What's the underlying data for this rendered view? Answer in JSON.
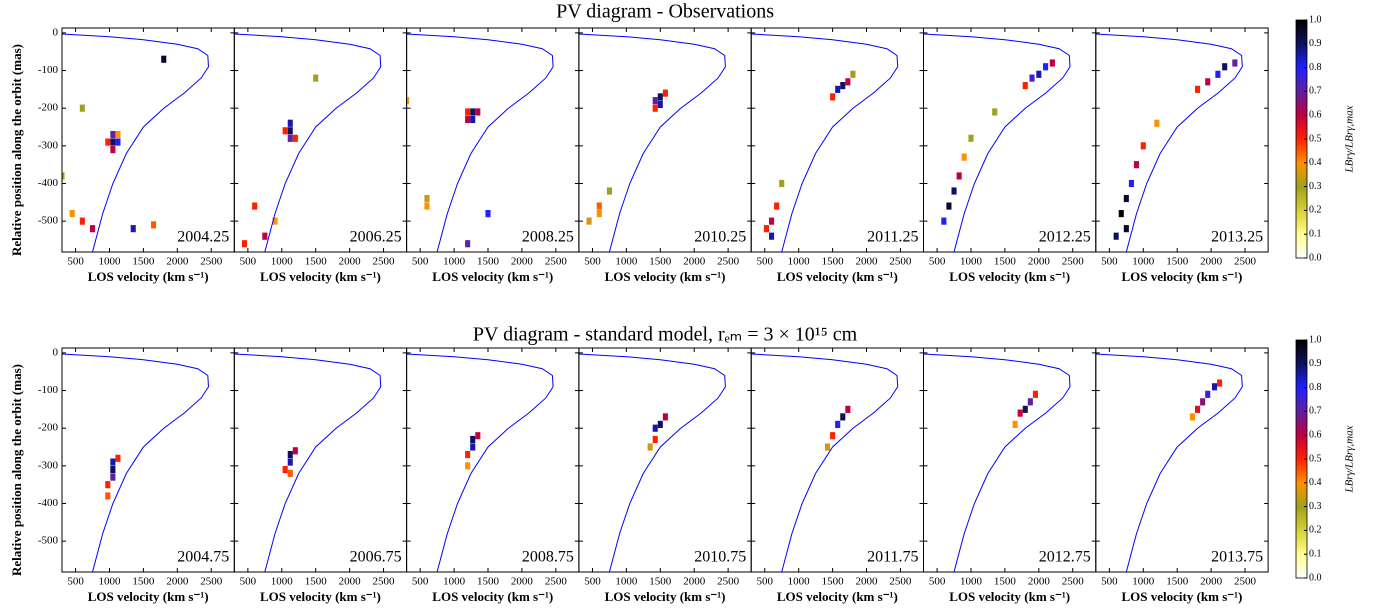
{
  "chart_data": [
    {
      "type": "heatmap",
      "title": "PV diagram - Observations",
      "xlabel": "LOS velocity (km s⁻¹)",
      "ylabel": "Relative position along the orbit (mas)",
      "xlim": [
        300,
        2840
      ],
      "ylim": [
        -582,
        13
      ],
      "xticks": [
        500,
        1000,
        1500,
        2000,
        2500
      ],
      "yticks": [
        0,
        -100,
        -200,
        -300,
        -400,
        -500
      ],
      "cell": [
        75,
        19
      ],
      "orbit": {
        "color": "#0000ff",
        "x": [
          300,
          1000,
          1500,
          2000,
          2300,
          2450,
          2460,
          2350,
          2100,
          1800,
          1500,
          1250,
          1050,
          900,
          750
        ],
        "y": [
          -3,
          -10,
          -18,
          -30,
          -42,
          -60,
          -90,
          -120,
          -160,
          -200,
          -250,
          -320,
          -400,
          -480,
          -582
        ]
      },
      "colorbar": {
        "label": "LBrγ/LBrγ,max",
        "clim": [
          0,
          1
        ],
        "colormap": [
          "#ffffff",
          "#ffff90",
          "#d8d030",
          "#a0a020",
          "#ff9000",
          "#ff2000",
          "#c00040",
          "#6020a0",
          "#2020ff",
          "#101060",
          "#000000"
        ],
        "cticks": [
          {
            "value": 0,
            "label": "0.0"
          },
          {
            "value": 0.1,
            "label": "0.1"
          },
          {
            "value": 0.2,
            "label": "0.2"
          },
          {
            "value": 0.3,
            "label": "0.3"
          },
          {
            "value": 0.4,
            "label": "0.4"
          },
          {
            "value": 0.5,
            "label": "0.5"
          },
          {
            "value": 0.6,
            "label": "0.6"
          },
          {
            "value": 0.7,
            "label": "0.7"
          },
          {
            "value": 0.8,
            "label": "0.8"
          },
          {
            "value": 0.9,
            "label": "0.9"
          },
          {
            "value": 1,
            "label": "1.0"
          }
        ]
      },
      "panels": [
        {
          "label": "2004.25",
          "cells": [
            [
              1050,
              -290,
              0.9
            ],
            [
              1050,
              -270,
              0.7
            ],
            [
              1125,
              -290,
              0.8
            ],
            [
              1050,
              -310,
              0.6
            ],
            [
              975,
              -290,
              0.5
            ],
            [
              1125,
              -270,
              0.4
            ],
            [
              600,
              -500,
              0.5
            ],
            [
              750,
              -520,
              0.6
            ],
            [
              1350,
              -520,
              0.85
            ],
            [
              450,
              -480,
              0.4
            ],
            [
              1650,
              -510,
              0.45
            ],
            [
              1800,
              -70,
              0.95
            ],
            [
              300,
              -380,
              0.3
            ],
            [
              600,
              -200,
              0.3
            ]
          ]
        },
        {
          "label": "2006.25",
          "cells": [
            [
              1125,
              -240,
              0.85
            ],
            [
              1125,
              -260,
              0.9
            ],
            [
              1125,
              -280,
              0.7
            ],
            [
              1050,
              -260,
              0.5
            ],
            [
              1200,
              -280,
              0.5
            ],
            [
              600,
              -460,
              0.5
            ],
            [
              750,
              -540,
              0.6
            ],
            [
              450,
              -560,
              0.5
            ],
            [
              900,
              -500,
              0.4
            ],
            [
              1500,
              -120,
              0.3
            ]
          ]
        },
        {
          "label": "2008.25",
          "cells": [
            [
              1275,
              -210,
              0.9
            ],
            [
              1275,
              -230,
              0.85
            ],
            [
              1200,
              -230,
              0.6
            ],
            [
              1350,
              -210,
              0.6
            ],
            [
              1200,
              -210,
              0.5
            ],
            [
              600,
              -460,
              0.4
            ],
            [
              600,
              -440,
              0.35
            ],
            [
              300,
              -180,
              0.4
            ],
            [
              1500,
              -480,
              0.8
            ],
            [
              1200,
              -560,
              0.7
            ]
          ]
        },
        {
          "label": "2010.25",
          "cells": [
            [
              1500,
              -170,
              0.9
            ],
            [
              1500,
              -190,
              0.85
            ],
            [
              1425,
              -180,
              0.7
            ],
            [
              1575,
              -160,
              0.5
            ],
            [
              1425,
              -200,
              0.5
            ],
            [
              600,
              -460,
              0.45
            ],
            [
              600,
              -480,
              0.4
            ],
            [
              750,
              -420,
              0.3
            ],
            [
              450,
              -500,
              0.35
            ]
          ]
        },
        {
          "label": "2011.25",
          "cells": [
            [
              1650,
              -140,
              0.9
            ],
            [
              1575,
              -150,
              0.85
            ],
            [
              1725,
              -130,
              0.6
            ],
            [
              1500,
              -170,
              0.5
            ],
            [
              600,
              -500,
              0.6
            ],
            [
              600,
              -540,
              0.85
            ],
            [
              675,
              -460,
              0.5
            ],
            [
              525,
              -520,
              0.5
            ],
            [
              750,
              -400,
              0.3
            ],
            [
              1800,
              -110,
              0.3
            ]
          ]
        },
        {
          "label": "2012.25",
          "cells": [
            [
              2000,
              -110,
              0.85
            ],
            [
              2100,
              -90,
              0.8
            ],
            [
              1900,
              -120,
              0.75
            ],
            [
              2200,
              -80,
              0.6
            ],
            [
              1800,
              -140,
              0.5
            ],
            [
              750,
              -420,
              0.9
            ],
            [
              675,
              -460,
              0.95
            ],
            [
              600,
              -500,
              0.8
            ],
            [
              825,
              -380,
              0.6
            ],
            [
              900,
              -330,
              0.4
            ],
            [
              1000,
              -280,
              0.3
            ],
            [
              1350,
              -210,
              0.3
            ]
          ]
        },
        {
          "label": "2013.25",
          "cells": [
            [
              2200,
              -90,
              0.9
            ],
            [
              2100,
              -110,
              0.8
            ],
            [
              2350,
              -80,
              0.7
            ],
            [
              1950,
              -130,
              0.6
            ],
            [
              1800,
              -150,
              0.5
            ],
            [
              750,
              -440,
              0.95
            ],
            [
              675,
              -480,
              1.0
            ],
            [
              750,
              -520,
              0.95
            ],
            [
              600,
              -540,
              0.9
            ],
            [
              825,
              -400,
              0.8
            ],
            [
              900,
              -350,
              0.6
            ],
            [
              1000,
              -300,
              0.5
            ],
            [
              1200,
              -240,
              0.4
            ]
          ]
        }
      ]
    },
    {
      "type": "heatmap",
      "title": "PV diagram - standard model, rₑₘ = 3 × 10¹⁵ cm",
      "xlabel": "LOS velocity (km s⁻¹)",
      "ylabel": "Relative position along the orbit (mas)",
      "xlim": [
        300,
        2840
      ],
      "ylim": [
        -582,
        13
      ],
      "xticks": [
        500,
        1000,
        1500,
        2000,
        2500
      ],
      "yticks": [
        0,
        -100,
        -200,
        -300,
        -400,
        -500
      ],
      "cell": [
        75,
        19
      ],
      "orbit": {
        "color": "#0000ff",
        "x": [
          300,
          1000,
          1500,
          2000,
          2300,
          2450,
          2460,
          2350,
          2100,
          1800,
          1500,
          1250,
          1050,
          900,
          750
        ],
        "y": [
          -3,
          -10,
          -18,
          -30,
          -42,
          -60,
          -90,
          -120,
          -160,
          -200,
          -250,
          -320,
          -400,
          -480,
          -582
        ]
      },
      "colorbar": {
        "label": "LBrγ/LBrγ,max",
        "clim": [
          0,
          1
        ],
        "colormap": [
          "#ffffff",
          "#ffff90",
          "#d8d030",
          "#a0a020",
          "#ff9000",
          "#ff2000",
          "#c00040",
          "#6020a0",
          "#2020ff",
          "#101060",
          "#000000"
        ],
        "cticks": [
          {
            "value": 0,
            "label": "0.0"
          },
          {
            "value": 0.1,
            "label": "0.1"
          },
          {
            "value": 0.2,
            "label": "0.2"
          },
          {
            "value": 0.3,
            "label": "0.3"
          },
          {
            "value": 0.4,
            "label": "0.4"
          },
          {
            "value": 0.5,
            "label": "0.5"
          },
          {
            "value": 0.6,
            "label": "0.6"
          },
          {
            "value": 0.7,
            "label": "0.7"
          },
          {
            "value": 0.8,
            "label": "0.8"
          },
          {
            "value": 0.9,
            "label": "0.9"
          },
          {
            "value": 1,
            "label": "1.0"
          }
        ]
      },
      "panels": [
        {
          "label": "2004.75",
          "cells": [
            [
              1050,
              -310,
              0.9
            ],
            [
              1050,
              -290,
              0.85
            ],
            [
              1050,
              -330,
              0.7
            ],
            [
              975,
              -350,
              0.5
            ],
            [
              1125,
              -280,
              0.5
            ],
            [
              975,
              -380,
              0.45
            ]
          ]
        },
        {
          "label": "2006.75",
          "cells": [
            [
              1125,
              -270,
              0.9
            ],
            [
              1125,
              -290,
              0.85
            ],
            [
              1200,
              -260,
              0.6
            ],
            [
              1050,
              -310,
              0.5
            ],
            [
              1125,
              -320,
              0.45
            ]
          ]
        },
        {
          "label": "2008.75",
          "cells": [
            [
              1275,
              -230,
              0.9
            ],
            [
              1275,
              -250,
              0.85
            ],
            [
              1350,
              -220,
              0.6
            ],
            [
              1200,
              -270,
              0.5
            ],
            [
              1200,
              -300,
              0.4
            ]
          ]
        },
        {
          "label": "2010.75",
          "cells": [
            [
              1500,
              -190,
              0.9
            ],
            [
              1425,
              -200,
              0.85
            ],
            [
              1575,
              -170,
              0.6
            ],
            [
              1425,
              -230,
              0.5
            ],
            [
              1350,
              -250,
              0.35
            ]
          ]
        },
        {
          "label": "2011.75",
          "cells": [
            [
              1650,
              -170,
              0.9
            ],
            [
              1575,
              -190,
              0.8
            ],
            [
              1725,
              -150,
              0.6
            ],
            [
              1500,
              -220,
              0.5
            ],
            [
              1425,
              -250,
              0.35
            ]
          ]
        },
        {
          "label": "2012.75",
          "cells": [
            [
              1800,
              -150,
              0.9
            ],
            [
              1875,
              -130,
              0.7
            ],
            [
              1725,
              -160,
              0.6
            ],
            [
              1950,
              -110,
              0.5
            ],
            [
              1650,
              -190,
              0.4
            ]
          ]
        },
        {
          "label": "2013.75",
          "cells": [
            [
              2050,
              -90,
              0.85
            ],
            [
              1950,
              -110,
              0.75
            ],
            [
              1875,
              -130,
              0.65
            ],
            [
              1800,
              -150,
              0.55
            ],
            [
              2125,
              -80,
              0.5
            ],
            [
              1725,
              -170,
              0.4
            ]
          ]
        }
      ]
    }
  ]
}
